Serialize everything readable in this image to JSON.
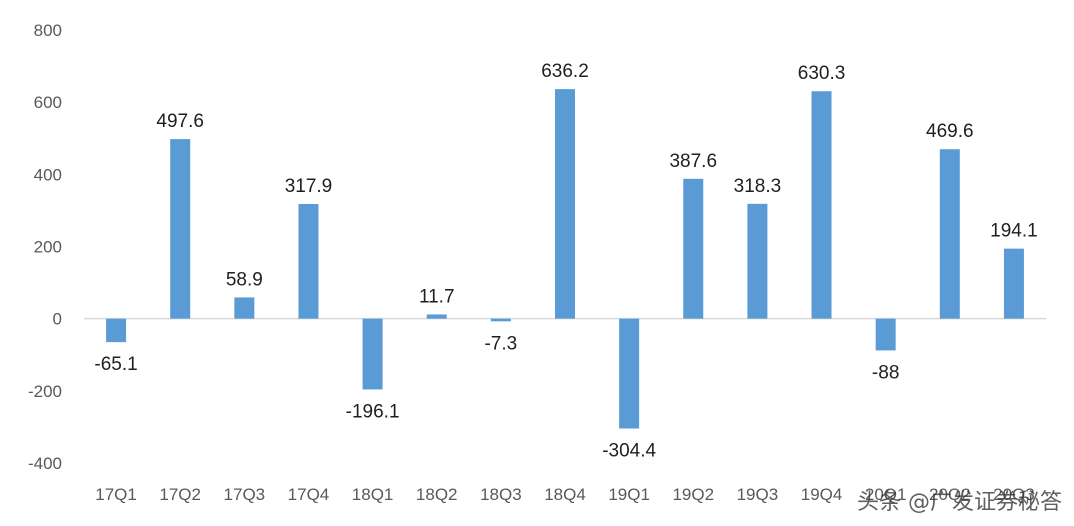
{
  "chart_data": {
    "type": "bar",
    "categories": [
      "17Q1",
      "17Q2",
      "17Q3",
      "17Q4",
      "18Q1",
      "18Q2",
      "18Q3",
      "18Q4",
      "19Q1",
      "19Q2",
      "19Q3",
      "19Q4",
      "20Q1",
      "20Q2",
      "20Q3"
    ],
    "values": [
      -65.1,
      497.6,
      58.9,
      317.9,
      -196.1,
      11.7,
      -7.3,
      636.2,
      -304.4,
      387.6,
      318.3,
      630.3,
      -88,
      469.6,
      194.1
    ],
    "data_labels": [
      "-65.1",
      "497.6",
      "58.9",
      "317.9",
      "-196.1",
      "11.7",
      "-7.3",
      "636.2",
      "-304.4",
      "387.6",
      "318.3",
      "630.3",
      "-88",
      "469.6",
      "194.1"
    ],
    "ylim": [
      -400,
      800
    ],
    "yticks": [
      800,
      600,
      400,
      200,
      0,
      -200,
      -400
    ],
    "title": "",
    "xlabel": "",
    "ylabel": "",
    "grid": false,
    "bar_color": "#5b9bd5"
  },
  "watermark": "头条 @广发证券秘答"
}
